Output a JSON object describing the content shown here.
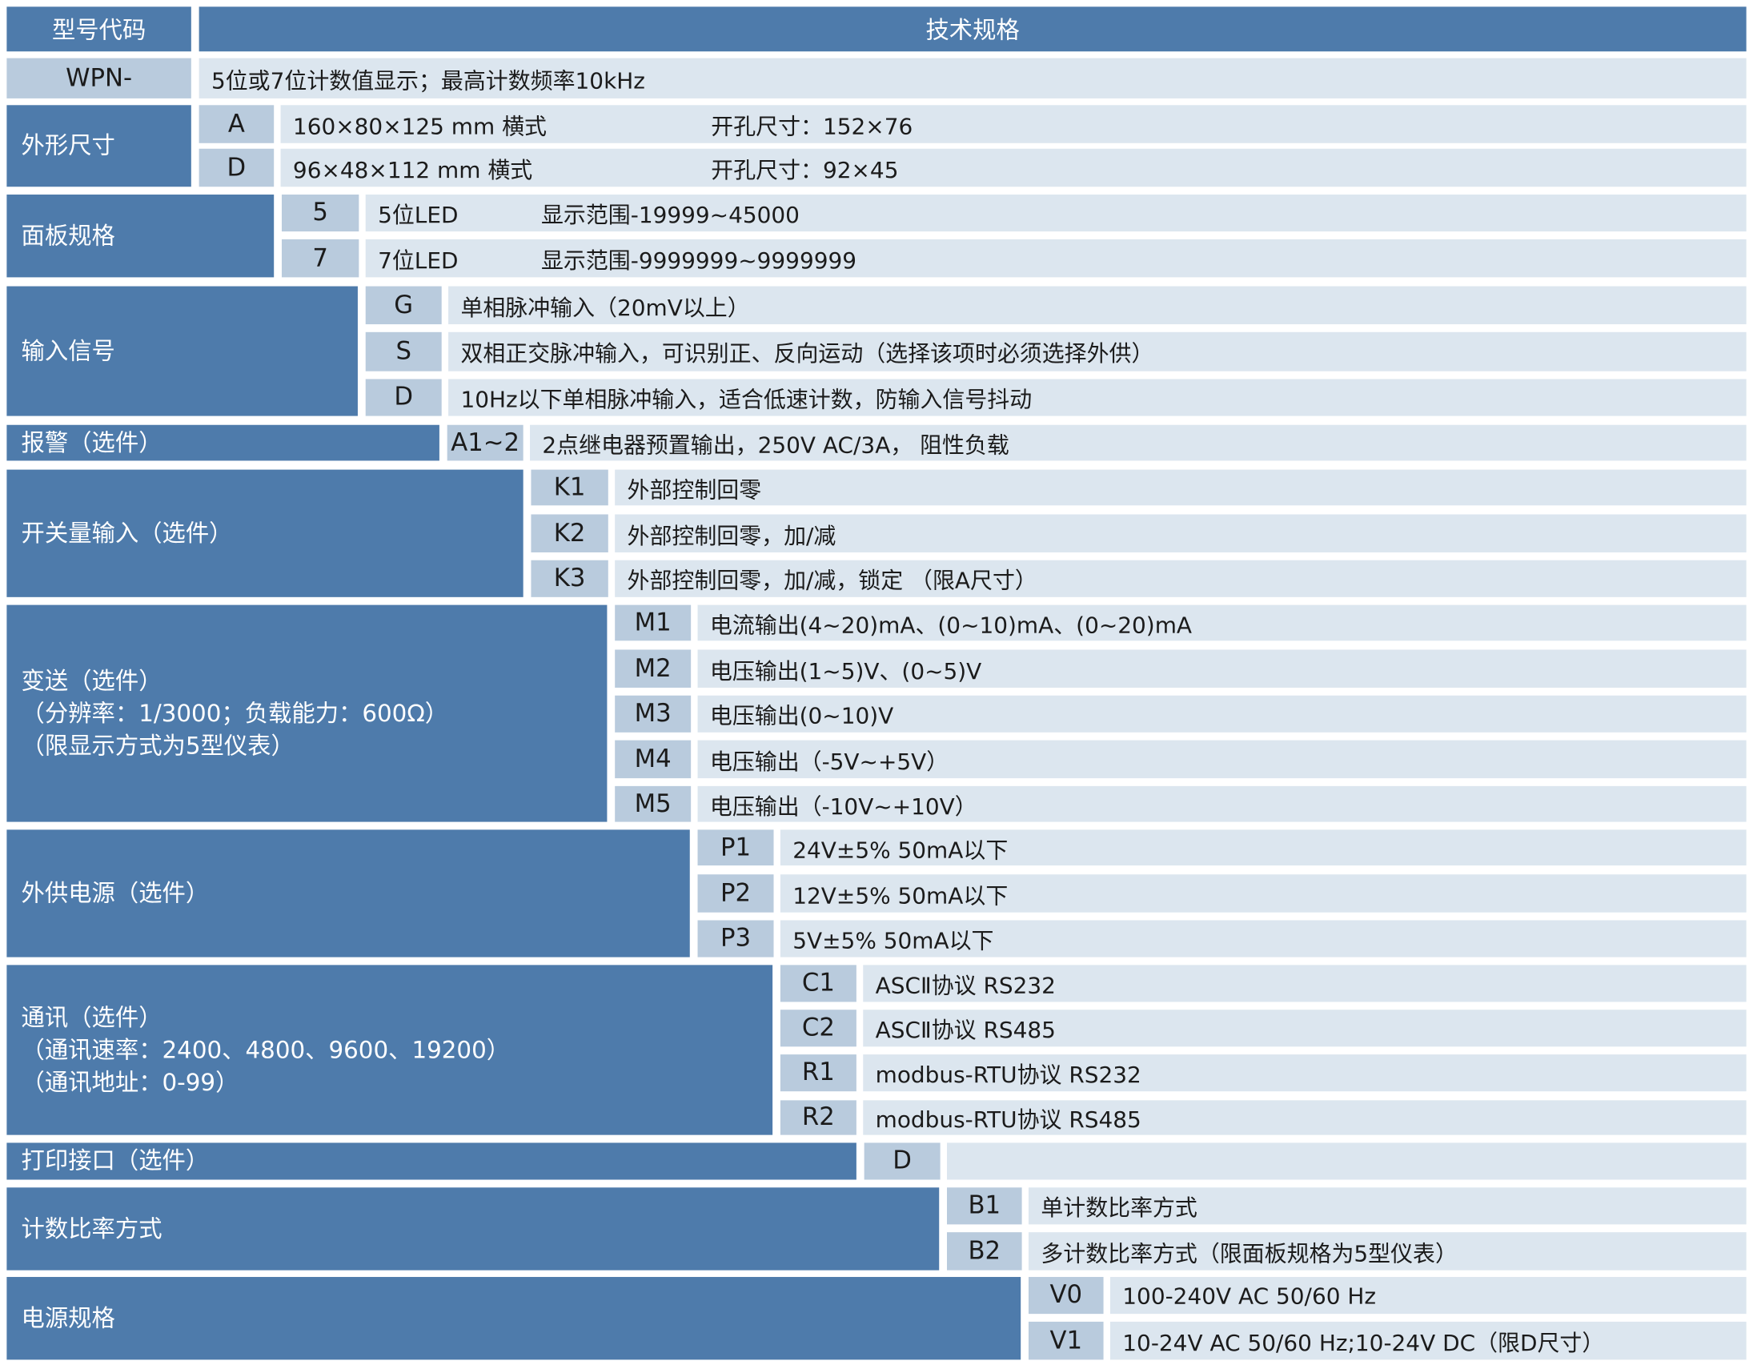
{
  "header": {
    "code_label": "型号代码",
    "spec_label": "技术规格"
  },
  "model": {
    "code": "WPN-",
    "desc": "5位或7位计数值显示；最高计数频率10kHz"
  },
  "groups": [
    {
      "label": [
        "外形尺寸"
      ],
      "options": [
        {
          "code": "A",
          "desc": "160×80×125 mm 横式",
          "desc2": "开孔尺寸：152×76"
        },
        {
          "code": "D",
          "desc": "96×48×112 mm 横式",
          "desc2": "开孔尺寸：92×45"
        }
      ]
    },
    {
      "label": [
        "面板规格"
      ],
      "options": [
        {
          "code": "5",
          "desc": "5位LED",
          "desc2": "显示范围-19999~45000"
        },
        {
          "code": "7",
          "desc": "7位LED",
          "desc2": "显示范围-9999999~9999999"
        }
      ]
    },
    {
      "label": [
        "输入信号"
      ],
      "options": [
        {
          "code": "G",
          "desc": "单相脉冲输入（20mV以上）"
        },
        {
          "code": "S",
          "desc": "双相正交脉冲输入，可识别正、反向运动（选择该项时必须选择外供）"
        },
        {
          "code": "D",
          "desc": "10Hz以下单相脉冲输入，适合低速计数，防输入信号抖动"
        }
      ]
    },
    {
      "label": [
        "报警（选件）"
      ],
      "options": [
        {
          "code": "A1~2",
          "desc": "2点继电器预置输出，250V AC/3A， 阻性负载"
        }
      ]
    },
    {
      "label": [
        "开关量输入（选件）"
      ],
      "options": [
        {
          "code": "K1",
          "desc": "外部控制回零"
        },
        {
          "code": "K2",
          "desc": "外部控制回零，加/减"
        },
        {
          "code": "K3",
          "desc": "外部控制回零，加/减，锁定 （限A尺寸）"
        }
      ]
    },
    {
      "label": [
        "变送（选件）",
        "（分辨率：1/3000；负载能力：600Ω）",
        "（限显示方式为5型仪表）"
      ],
      "options": [
        {
          "code": "M1",
          "desc": "电流输出(4~20)mA、(0~10)mA、(0~20)mA"
        },
        {
          "code": "M2",
          "desc": "电压输出(1~5)V、(0~5)V"
        },
        {
          "code": "M3",
          "desc": "电压输出(0~10)V"
        },
        {
          "code": "M4",
          "desc": "电压输出（-5V~+5V）"
        },
        {
          "code": "M5",
          "desc": "电压输出（-10V~+10V）"
        }
      ]
    },
    {
      "label": [
        "外供电源（选件）"
      ],
      "options": [
        {
          "code": "P1",
          "desc": "24V±5% 50mA以下"
        },
        {
          "code": "P2",
          "desc": "12V±5% 50mA以下"
        },
        {
          "code": "P3",
          "desc": "5V±5% 50mA以下"
        }
      ]
    },
    {
      "label": [
        "通讯（选件）",
        "（通讯速率：2400、4800、9600、19200）",
        "（通讯地址：0-99）"
      ],
      "options": [
        {
          "code": "C1",
          "desc": "ASCⅡ协议 RS232"
        },
        {
          "code": "C2",
          "desc": "ASCⅡ协议 RS485"
        },
        {
          "code": "R1",
          "desc": "modbus-RTU协议 RS232"
        },
        {
          "code": "R2",
          "desc": "modbus-RTU协议 RS485"
        }
      ]
    },
    {
      "label": [
        "打印接口（选件）"
      ],
      "options": [
        {
          "code": "D",
          "desc": ""
        }
      ]
    },
    {
      "label": [
        "计数比率方式"
      ],
      "options": [
        {
          "code": "B1",
          "desc": "单计数比率方式"
        },
        {
          "code": "B2",
          "desc": "多计数比率方式（限面板规格为5型仪表）"
        }
      ]
    },
    {
      "label": [
        "电源规格"
      ],
      "options": [
        {
          "code": "V0",
          "desc": "100-240V AC 50/60 Hz"
        },
        {
          "code": "V1",
          "desc": "10-24V AC 50/60 Hz;10-24V DC（限D尺寸）"
        }
      ]
    }
  ]
}
